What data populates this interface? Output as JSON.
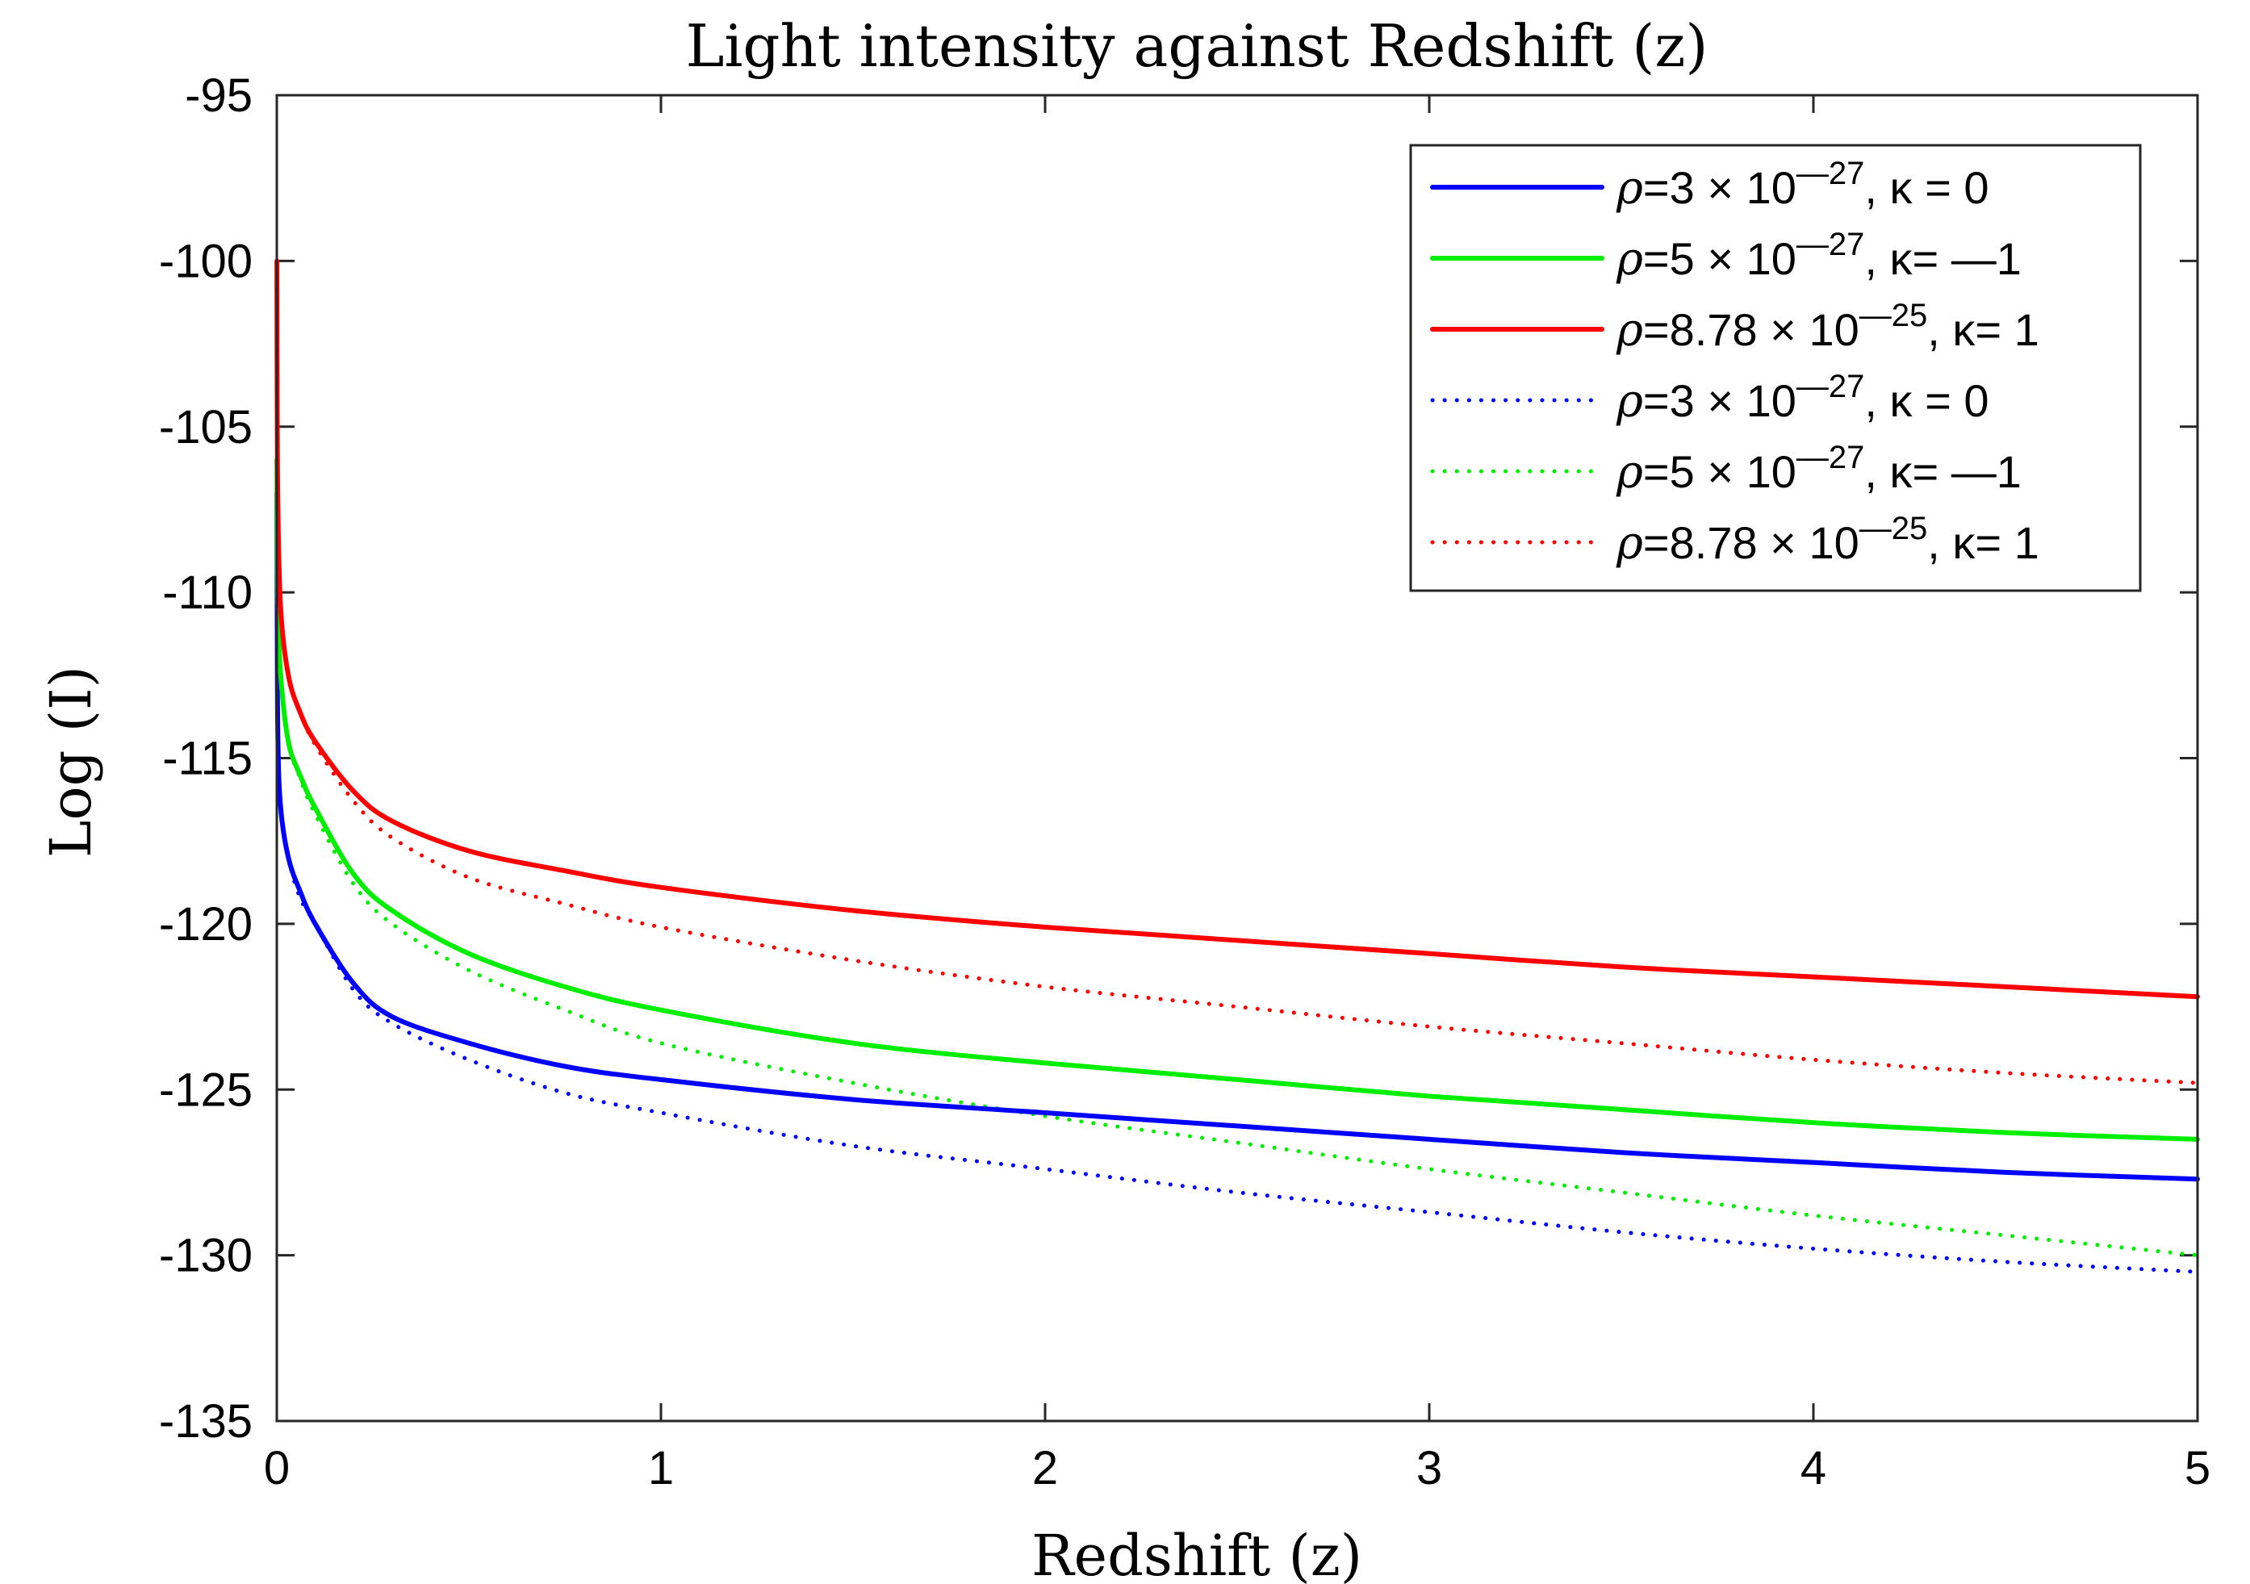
{
  "chart_data": {
    "type": "line",
    "title": "Light intensity against Redshift (z)",
    "xlabel": "Redshift (z)",
    "ylabel": "Log (I)",
    "xlim": [
      0,
      5
    ],
    "ylim": [
      -135,
      -95
    ],
    "xticks": [
      0,
      1,
      2,
      3,
      4,
      5
    ],
    "yticks": [
      -95,
      -100,
      -105,
      -110,
      -115,
      -120,
      -125,
      -130,
      -135
    ],
    "grid": false,
    "legend_position": "top-right",
    "x": [
      0.0003,
      0.001,
      0.003,
      0.01,
      0.03,
      0.06,
      0.1,
      0.2,
      0.3,
      0.5,
      0.75,
      1,
      1.5,
      2,
      2.5,
      3,
      3.5,
      4,
      4.5,
      5
    ],
    "series": [
      {
        "name": "solid-blue",
        "color": "#0000ff",
        "style": "solid",
        "legend": {
          "rho_mantissa": "3",
          "rho_exponent": "—27",
          "kappa_text": ", κ = 0"
        },
        "values": [
          -107.0,
          -111.0,
          -114.5,
          -116.5,
          -118.0,
          -119.0,
          -120.0,
          -121.8,
          -122.8,
          -123.6,
          -124.3,
          -124.7,
          -125.3,
          -125.7,
          -126.1,
          -126.5,
          -126.9,
          -127.2,
          -127.5,
          -127.7
        ]
      },
      {
        "name": "solid-green",
        "color": "#00ee00",
        "style": "solid",
        "legend": {
          "rho_mantissa": "5",
          "rho_exponent": "—27",
          "kappa_text": ", κ= —1"
        },
        "values": [
          -106.0,
          -108.5,
          -110.5,
          -112.5,
          -114.5,
          -115.5,
          -116.5,
          -118.5,
          -119.6,
          -120.9,
          -121.9,
          -122.6,
          -123.6,
          -124.2,
          -124.7,
          -125.2,
          -125.6,
          -126.0,
          -126.3,
          -126.5
        ]
      },
      {
        "name": "solid-red",
        "color": "#ff0000",
        "style": "solid",
        "legend": {
          "rho_mantissa": "8.78",
          "rho_exponent": "—25",
          "kappa_text": ", κ= 1"
        },
        "values": [
          -100.0,
          -104.5,
          -107.5,
          -110.5,
          -112.5,
          -113.6,
          -114.5,
          -116.0,
          -116.9,
          -117.8,
          -118.4,
          -118.9,
          -119.6,
          -120.1,
          -120.5,
          -120.9,
          -121.3,
          -121.6,
          -121.9,
          -122.2
        ]
      },
      {
        "name": "dotted-blue",
        "color": "#0000ff",
        "style": "dotted",
        "legend": {
          "rho_mantissa": "3",
          "rho_exponent": "—27",
          "kappa_text": ", κ = 0"
        },
        "values": [
          -107.0,
          -111.0,
          -114.5,
          -116.5,
          -118.0,
          -119.2,
          -120.0,
          -122.0,
          -123.0,
          -124.1,
          -125.1,
          -125.7,
          -126.7,
          -127.4,
          -128.1,
          -128.7,
          -129.3,
          -129.8,
          -130.2,
          -130.5
        ]
      },
      {
        "name": "dotted-green",
        "color": "#00ee00",
        "style": "dotted",
        "legend": {
          "rho_mantissa": "5",
          "rho_exponent": "—27",
          "kappa_text": ", κ= —1"
        },
        "values": [
          -106.0,
          -108.5,
          -110.5,
          -112.5,
          -114.5,
          -115.6,
          -116.7,
          -118.8,
          -120.0,
          -121.4,
          -122.6,
          -123.6,
          -124.8,
          -125.8,
          -126.6,
          -127.4,
          -128.1,
          -128.8,
          -129.4,
          -130.0
        ]
      },
      {
        "name": "dotted-red",
        "color": "#ff0000",
        "style": "dotted",
        "legend": {
          "rho_mantissa": "8.78",
          "rho_exponent": "—25",
          "kappa_text": ", κ= 1"
        },
        "values": [
          -100.0,
          -104.5,
          -107.5,
          -110.5,
          -112.5,
          -113.6,
          -114.6,
          -116.3,
          -117.4,
          -118.6,
          -119.4,
          -120.1,
          -121.1,
          -121.9,
          -122.5,
          -123.1,
          -123.6,
          -124.1,
          -124.5,
          -124.8
        ]
      }
    ]
  }
}
